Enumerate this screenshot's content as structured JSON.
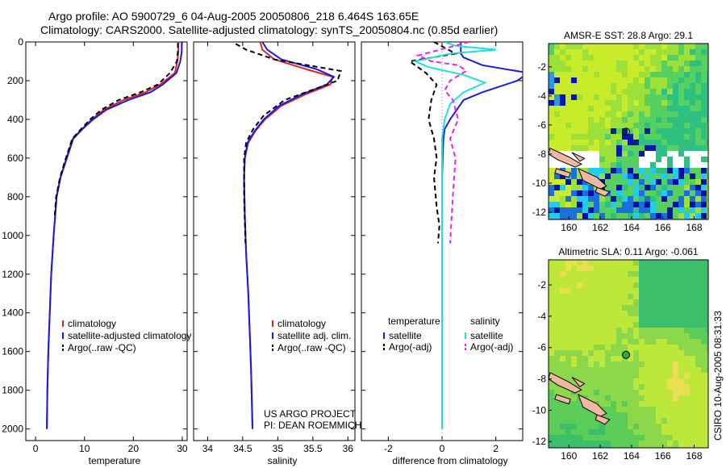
{
  "header": {
    "line1": "Argo profile: AO 5900729_6 04-Aug-2005 20050806_218 6.464S 163.65E",
    "line2": "Climatology: CARS2000. Satellite-adjusted climatology: synTS_20050804.nc (0.85d earlier)"
  },
  "project": {
    "line1": "US ARGO PROJECT",
    "line2": "PI: DEAN ROEMMICH"
  },
  "stamp": "CSIRO 10-Aug-2005 08:31:33",
  "colors": {
    "red": "#dd2222",
    "blue": "#1a1ae6",
    "black": "#000000",
    "cyan": "#22dddd",
    "magenta": "#ee22ee"
  },
  "chart_data": [
    {
      "type": "line",
      "id": "temperature",
      "xlabel": "temperature",
      "ylabel": "",
      "xlim": [
        -2,
        31
      ],
      "ylim": [
        2060,
        0
      ],
      "xticks": [
        0,
        10,
        20,
        30
      ],
      "yticks": [
        0,
        200,
        400,
        600,
        800,
        1000,
        1200,
        1400,
        1600,
        1800,
        2000
      ],
      "legend": [
        "climatology",
        "satellite-adjusted climatology",
        "Argo(..raw -QC)"
      ],
      "series": [
        {
          "name": "climatology",
          "color": "#dd2222",
          "dash": false,
          "x": [
            29.2,
            29.2,
            29.0,
            28.5,
            25.5,
            22.5,
            18,
            14,
            11.5,
            9.5,
            7.6,
            6.3,
            5.1,
            4.3,
            3.7,
            3.2,
            2.9,
            2.6,
            2.4,
            2.3
          ],
          "y": [
            0,
            50,
            100,
            160,
            220,
            260,
            300,
            350,
            400,
            450,
            500,
            600,
            700,
            800,
            1000,
            1200,
            1400,
            1600,
            1800,
            2000
          ]
        },
        {
          "name": "satellite-adjusted climatology",
          "color": "#1a1ae6",
          "dash": false,
          "x": [
            29.9,
            29.9,
            29.6,
            28.8,
            26.0,
            23.5,
            19,
            14.5,
            11.8,
            9.6,
            7.7,
            6.4,
            5.1,
            4.3,
            3.7,
            3.2,
            2.9,
            2.6,
            2.4,
            2.3
          ],
          "y": [
            0,
            50,
            100,
            160,
            220,
            260,
            300,
            350,
            400,
            450,
            500,
            600,
            700,
            800,
            1000,
            1200,
            1400,
            1600,
            1800,
            2000
          ]
        },
        {
          "name": "Argo(..raw -QC)",
          "color": "#000000",
          "dash": true,
          "x": [
            29.1,
            29.1,
            28.9,
            27.5,
            25,
            21.5,
            17,
            13.5,
            11.2,
            9.3,
            7.5,
            6.2,
            5.0,
            4.2,
            3.9
          ],
          "y": [
            5,
            50,
            100,
            160,
            220,
            260,
            300,
            350,
            400,
            450,
            500,
            600,
            700,
            800,
            900
          ]
        }
      ]
    },
    {
      "type": "line",
      "id": "salinity",
      "xlabel": "salinity",
      "xlim": [
        33.8,
        36.1
      ],
      "ylim": [
        2060,
        0
      ],
      "xticks": [
        34,
        34.5,
        35,
        35.5,
        36
      ],
      "legend": [
        "climatology",
        "satellite adj. clim.",
        "Argo(..raw -QC)"
      ],
      "series": [
        {
          "name": "climatology",
          "color": "#dd2222",
          "dash": false,
          "x": [
            34.75,
            34.78,
            34.95,
            35.4,
            35.78,
            35.75,
            35.4,
            35.05,
            34.82,
            34.68,
            34.58,
            34.53,
            34.52,
            34.53,
            34.55,
            34.58,
            34.6,
            34.62,
            34.64
          ],
          "y": [
            0,
            40,
            90,
            140,
            180,
            220,
            270,
            330,
            400,
            460,
            520,
            600,
            700,
            900,
            1100,
            1300,
            1500,
            1700,
            1990
          ]
        },
        {
          "name": "satellite adj. clim.",
          "color": "#1a1ae6",
          "dash": false,
          "x": [
            34.78,
            34.85,
            35.05,
            35.55,
            35.8,
            35.7,
            35.35,
            35.02,
            34.8,
            34.67,
            34.57,
            34.53,
            34.52,
            34.53,
            34.55,
            34.58,
            34.6,
            34.62,
            34.64
          ],
          "y": [
            0,
            40,
            90,
            140,
            180,
            220,
            270,
            330,
            400,
            460,
            520,
            600,
            700,
            900,
            1100,
            1300,
            1500,
            1700,
            2000
          ]
        },
        {
          "name": "Argo(..raw -QC)",
          "color": "#000000",
          "dash": true,
          "x": [
            34.4,
            34.55,
            34.95,
            35.9,
            35.85,
            35.55,
            35.1,
            34.8,
            34.65,
            34.55,
            34.52,
            34.52,
            34.54
          ],
          "y": [
            10,
            40,
            90,
            150,
            200,
            240,
            300,
            380,
            450,
            520,
            600,
            800,
            1040
          ]
        }
      ]
    },
    {
      "type": "line",
      "id": "difference",
      "xlabel": "difference from climatology",
      "xlim": [
        -3,
        3
      ],
      "ylim": [
        2060,
        0
      ],
      "xticks": [
        -2,
        0,
        2
      ],
      "legend_headers": [
        "temperature",
        "salinity"
      ],
      "legend": [
        "satellite",
        "Argo(-adj)",
        "satellite",
        "Argo(-adj)"
      ],
      "series": [
        {
          "name": "temperature satellite",
          "color": "#1a1ae6",
          "dash": false,
          "x": [
            0.7,
            0.7,
            0.8,
            1.5,
            3.2,
            2.8,
            1.5,
            0.8,
            0.5,
            0.3,
            0.1,
            0.05,
            0,
            0,
            0
          ],
          "y": [
            0,
            60,
            80,
            120,
            160,
            200,
            260,
            300,
            360,
            400,
            450,
            500,
            700,
            1000,
            1250
          ]
        },
        {
          "name": "temperature Argo(-adj)",
          "color": "#000000",
          "dash": true,
          "x": [
            -0.3,
            0.5,
            -1.2,
            -0.6,
            -0.2,
            -0.4,
            -0.5,
            -0.3,
            -0.2,
            -0.3,
            -0.2,
            -0.1,
            -0.15
          ],
          "y": [
            0,
            60,
            100,
            160,
            220,
            300,
            400,
            500,
            600,
            700,
            850,
            950,
            1040
          ]
        },
        {
          "name": "salinity satellite",
          "color": "#22dddd",
          "dash": false,
          "x": [
            0.1,
            0.5,
            2.0,
            0.3,
            -1.0,
            -0.5,
            0.8,
            1.6,
            0.8,
            0.3,
            0.1,
            0,
            0,
            0,
            0
          ],
          "y": [
            0,
            20,
            40,
            60,
            100,
            130,
            170,
            210,
            260,
            320,
            400,
            500,
            800,
            1400,
            2000
          ]
        },
        {
          "name": "salinity Argo(-adj)",
          "color": "#ee22ee",
          "dash": true,
          "x": [
            1.0,
            0.2,
            -0.9,
            -0.4,
            0.6,
            0.9,
            0.3,
            0.1,
            0.4,
            0.6,
            0.3,
            0.5,
            0.4,
            0.3
          ],
          "y": [
            0,
            30,
            70,
            100,
            120,
            150,
            200,
            250,
            300,
            400,
            500,
            600,
            800,
            1040
          ]
        }
      ]
    },
    {
      "type": "heatmap",
      "id": "sst-map",
      "title": "AMSR-E SST: 28.8 Argo: 29.1",
      "xlim": [
        158.7,
        168.9
      ],
      "ylim": [
        -12.5,
        -0.4
      ],
      "xticks": [
        160,
        162,
        164,
        166,
        168
      ],
      "yticks": [
        -2,
        -4,
        -6,
        -8,
        -10,
        -12
      ],
      "argo_position": {
        "lon": 163.65,
        "lat": -6.464
      }
    },
    {
      "type": "heatmap",
      "id": "sla-map",
      "title": "Altimetric SLA: 0.11 Argo: -0.061",
      "xlim": [
        158.7,
        168.9
      ],
      "ylim": [
        -12.4,
        -0.4
      ],
      "xticks": [
        160,
        162,
        164,
        166,
        168
      ],
      "yticks": [
        -2,
        -4,
        -6,
        -8,
        -10,
        -12
      ],
      "argo_position": {
        "lon": 163.65,
        "lat": -6.464
      }
    }
  ]
}
